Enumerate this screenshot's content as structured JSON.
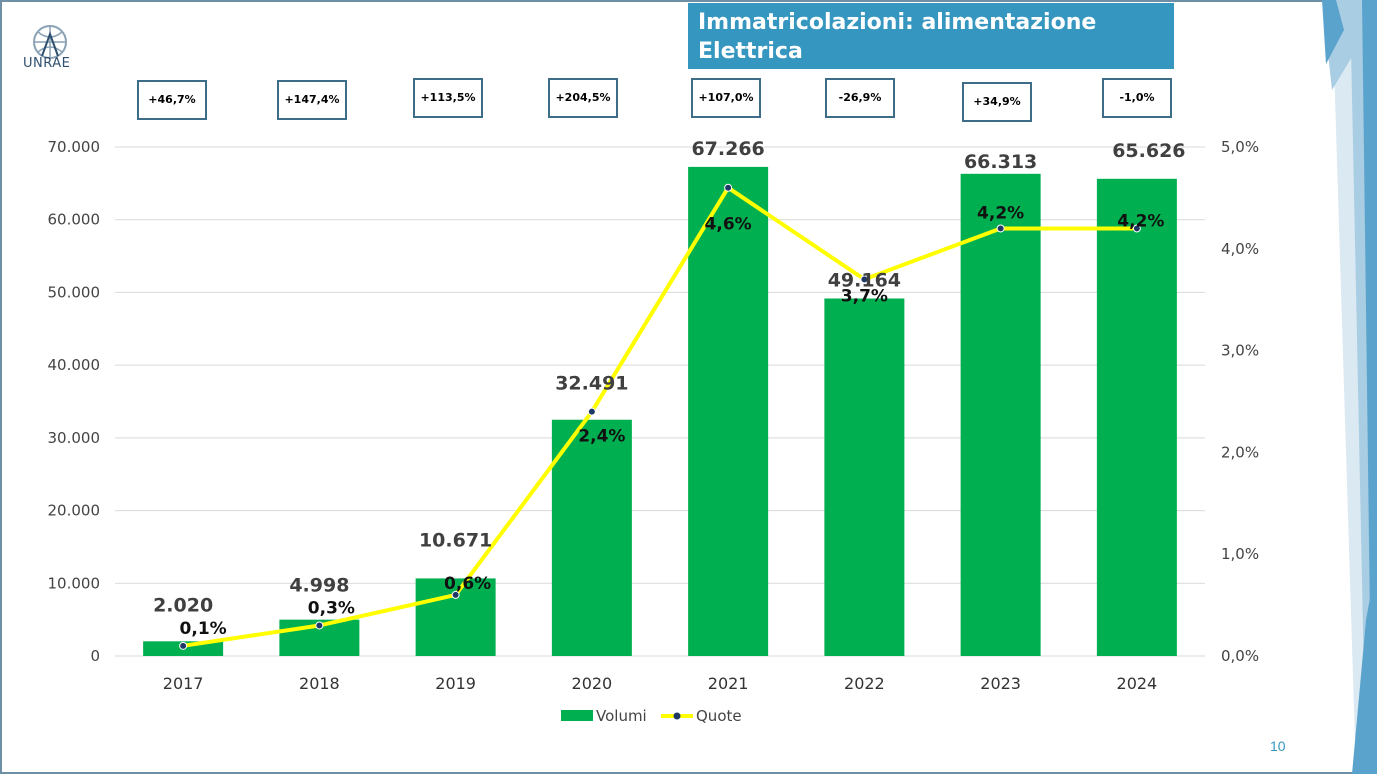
{
  "slide": {
    "title": "Immatricolazioni: alimentazione Elettrica",
    "logo_text": "UNRAE",
    "page_number": "10"
  },
  "changes": [
    "+46,7%",
    "+147,4%",
    "+113,5%",
    "+204,5%",
    "+107,0%",
    "-26,9%",
    "+34,9%",
    "-1,0%"
  ],
  "colors": {
    "bars": "#00b050",
    "line": "#ffff00",
    "title_bg": "#3596bf",
    "box_border": "#3e6e87"
  },
  "chart_data": {
    "type": "bar",
    "categories": [
      "2017",
      "2018",
      "2019",
      "2020",
      "2021",
      "2022",
      "2023",
      "2024"
    ],
    "series": [
      {
        "name": "Volumi",
        "type": "bar",
        "axis": "left",
        "values": [
          2020,
          4998,
          10671,
          32491,
          67266,
          49164,
          66313,
          65626
        ],
        "labels": [
          "2.020",
          "4.998",
          "10.671",
          "32.491",
          "67.266",
          "49.164",
          "66.313",
          "65.626"
        ]
      },
      {
        "name": "Quote",
        "type": "line",
        "axis": "right",
        "values": [
          0.1,
          0.3,
          0.6,
          2.4,
          4.6,
          3.7,
          4.2,
          4.2
        ],
        "labels": [
          "0,1%",
          "0,3%",
          "0,6%",
          "2,4%",
          "4,6%",
          "3,7%",
          "4,2%",
          "4,2%"
        ]
      }
    ],
    "y_left": {
      "ylim": [
        0,
        70000
      ],
      "ticks": [
        "0",
        "10.000",
        "20.000",
        "30.000",
        "40.000",
        "50.000",
        "60.000",
        "70.000"
      ]
    },
    "y_right": {
      "ylim": [
        0,
        5
      ],
      "ticks": [
        "0,0%",
        "1,0%",
        "2,0%",
        "3,0%",
        "4,0%",
        "5,0%"
      ]
    },
    "grid": true,
    "legend": "bottom"
  }
}
